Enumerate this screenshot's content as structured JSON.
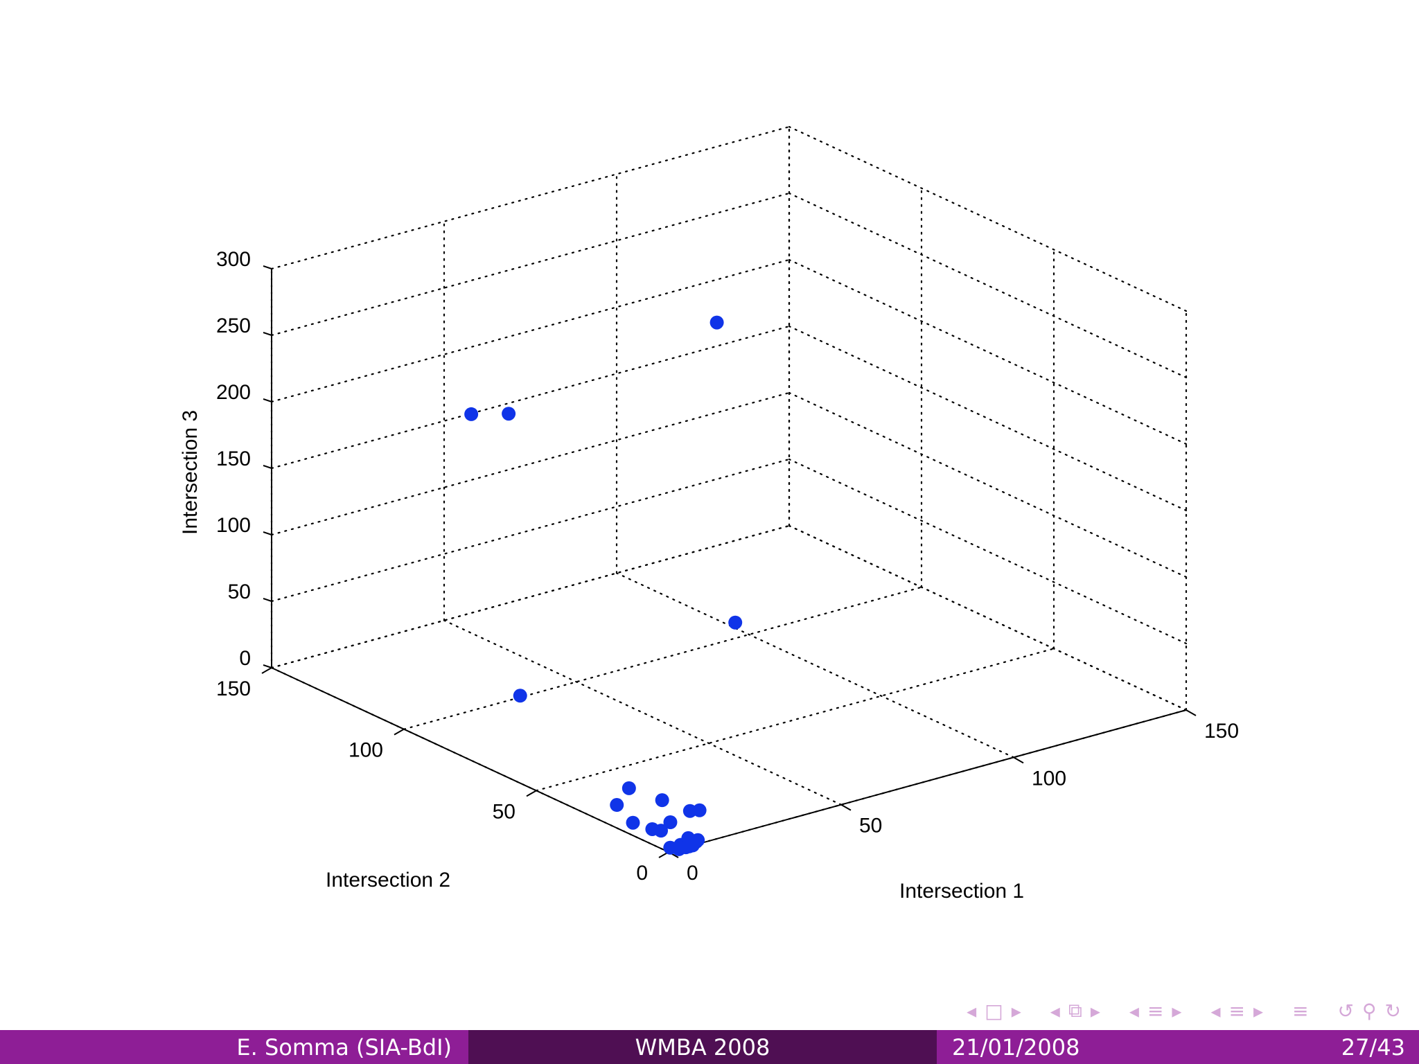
{
  "chart_data": {
    "type": "scatter",
    "projection": "3d",
    "grid": true,
    "color": "#1034e8",
    "xlabel": "Intersection 1",
    "ylabel": "Intersection 2",
    "zlabel": "Intersection 3",
    "xlim": [
      0,
      150
    ],
    "ylim": [
      0,
      150
    ],
    "zlim": [
      0,
      300
    ],
    "xticks": [
      "0",
      "50",
      "100",
      "150"
    ],
    "yticks": [
      "0",
      "50",
      "100",
      "150"
    ],
    "zticks": [
      "0",
      "50",
      "100",
      "150",
      "200",
      "250",
      "300"
    ],
    "points": [
      {
        "x": 60,
        "y": 60,
        "z": 300
      },
      {
        "x": 8,
        "y": 85,
        "z": 245
      },
      {
        "x": 15,
        "y": 80,
        "z": 245
      },
      {
        "x": 50,
        "y": 40,
        "z": 100
      },
      {
        "x": 3,
        "y": 60,
        "z": 60
      },
      {
        "x": 10,
        "y": 28,
        "z": 15
      },
      {
        "x": 15,
        "y": 22,
        "z": 8
      },
      {
        "x": 8,
        "y": 30,
        "z": 2
      },
      {
        "x": 20,
        "y": 18,
        "z": 0
      },
      {
        "x": 22,
        "y": 17,
        "z": 0
      },
      {
        "x": 12,
        "y": 15,
        "z": 0
      },
      {
        "x": 5,
        "y": 20,
        "z": 0
      },
      {
        "x": 6,
        "y": 14,
        "z": 0
      },
      {
        "x": 7,
        "y": 12,
        "z": 0
      },
      {
        "x": 8,
        "y": 3,
        "z": 2
      },
      {
        "x": 10,
        "y": 2,
        "z": 0
      },
      {
        "x": 8,
        "y": 0,
        "z": 2
      },
      {
        "x": 5,
        "y": 2,
        "z": 0
      },
      {
        "x": 6,
        "y": 0,
        "z": 0
      },
      {
        "x": 7,
        "y": 0,
        "z": 0
      },
      {
        "x": 5,
        "y": 0,
        "z": 0
      },
      {
        "x": 2,
        "y": 2,
        "z": 0
      },
      {
        "x": 3,
        "y": 0,
        "z": 0
      }
    ]
  },
  "footer": {
    "author": "E. Somma (SIA-BdI)",
    "event": "WMBA 2008",
    "date": "21/01/2008",
    "page": "27/43"
  },
  "nav": {
    "prev": "◂",
    "next": "▸",
    "frame_icon": "□",
    "stack_icon": "⧉",
    "list_icon": "≡",
    "align_icon": "≡",
    "loop_icon": "↺",
    "search_icon": "⚲",
    "redo_icon": "↻"
  }
}
